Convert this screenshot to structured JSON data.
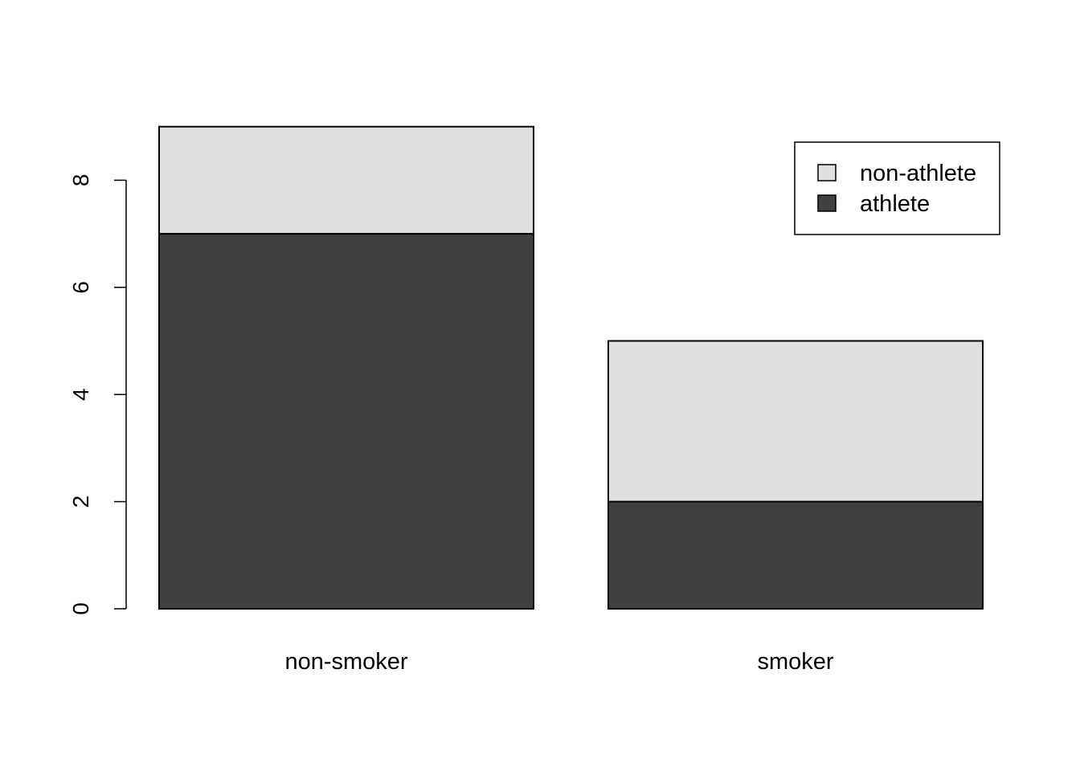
{
  "chart_data": {
    "type": "bar",
    "stacked": true,
    "categories": [
      "non-smoker",
      "smoker"
    ],
    "series": [
      {
        "name": "athlete",
        "values": [
          7,
          2
        ],
        "color": "#404040"
      },
      {
        "name": "non-athlete",
        "values": [
          2,
          3
        ],
        "color": "#e0e0e0"
      }
    ],
    "ylim": [
      0,
      9
    ],
    "yticks": [
      0,
      2,
      4,
      6,
      8
    ],
    "legend": {
      "position": "top-right",
      "entries": [
        {
          "label": "non-athlete",
          "color": "#e0e0e0"
        },
        {
          "label": "athlete",
          "color": "#404040"
        }
      ]
    },
    "title": "",
    "xlabel": "",
    "ylabel": "",
    "grid": false
  }
}
